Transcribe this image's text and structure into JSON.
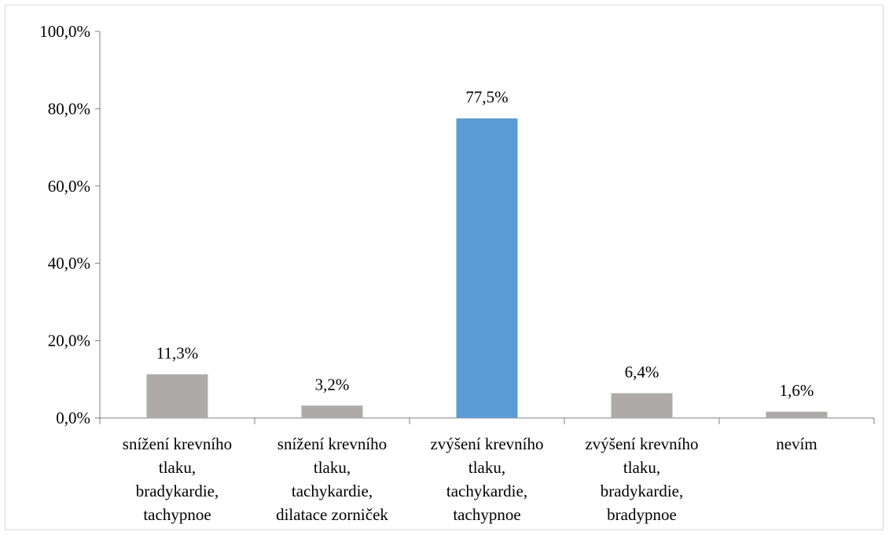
{
  "chart_data": {
    "type": "bar",
    "categories": [
      [
        "snížení krevního",
        "tlaku,",
        "bradykardie,",
        "tachypnoe"
      ],
      [
        "snížení krevního",
        "tlaku,",
        "tachykardie,",
        "dilatace zorniček"
      ],
      [
        "zvýšení krevního",
        "tlaku,",
        "tachykardie,",
        "tachypnoe"
      ],
      [
        "zvýšení krevního",
        "tlaku,",
        "bradykardie,",
        "bradypnoe"
      ],
      [
        "nevím"
      ]
    ],
    "values": [
      11.3,
      3.2,
      77.5,
      6.4,
      1.6
    ],
    "data_labels": [
      "11,3%",
      "3,2%",
      "77,5%",
      "6,4%",
      "1,6%"
    ],
    "y_ticks": [
      "0,0%",
      "20,0%",
      "40,0%",
      "60,0%",
      "80,0%",
      "100,0%"
    ],
    "ylim": [
      0,
      100
    ],
    "grid": false,
    "colors": {
      "default_bar": "#aeaaaa",
      "highlight_bar": "#5b9bd5",
      "axis": "#7f7f7f"
    },
    "highlight_index": 2
  }
}
